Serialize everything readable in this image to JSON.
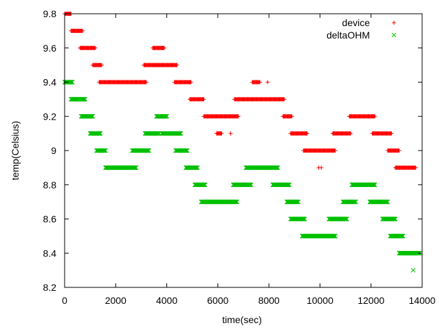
{
  "chart_data": {
    "type": "scatter",
    "title": "",
    "xlabel": "time(sec)",
    "ylabel": "temp(Celsius)",
    "xlim": [
      0,
      14000
    ],
    "ylim": [
      8.2,
      9.8
    ],
    "xticks": [
      0,
      2000,
      4000,
      6000,
      8000,
      10000,
      12000,
      14000
    ],
    "xtick_labels": [
      "0",
      "2000",
      "4000",
      "6000",
      "8000",
      "10000",
      "12000",
      "14000"
    ],
    "yticks": [
      8.2,
      8.4,
      8.6,
      8.8,
      9.0,
      9.2,
      9.4,
      9.6,
      9.8
    ],
    "ytick_labels": [
      "8.2",
      "8.4",
      "8.6",
      "8.8",
      "9",
      "9.2",
      "9.4",
      "9.6",
      "9.8"
    ],
    "grid": false,
    "legend_position": "top-right",
    "series": [
      {
        "name": "device",
        "marker": "plus",
        "color": "#ff0000",
        "segments": [
          {
            "x0": 0,
            "x1": 250,
            "y": 9.8
          },
          {
            "x0": 250,
            "x1": 700,
            "y": 9.7
          },
          {
            "x0": 600,
            "x1": 1200,
            "y": 9.6
          },
          {
            "x0": 1100,
            "x1": 1450,
            "y": 9.5
          },
          {
            "x0": 1350,
            "x1": 3200,
            "y": 9.4
          },
          {
            "x0": 3100,
            "x1": 3600,
            "y": 9.5
          },
          {
            "x0": 3450,
            "x1": 3900,
            "y": 9.6
          },
          {
            "x0": 3600,
            "x1": 4400,
            "y": 9.5
          },
          {
            "x0": 4300,
            "x1": 4950,
            "y": 9.4
          },
          {
            "x0": 4900,
            "x1": 5450,
            "y": 9.3
          },
          {
            "x0": 5450,
            "x1": 6800,
            "y": 9.2
          },
          {
            "x0": 5950,
            "x1": 6150,
            "y": 9.1
          },
          {
            "x0": 6650,
            "x1": 8600,
            "y": 9.3
          },
          {
            "x0": 7350,
            "x1": 7650,
            "y": 9.4
          },
          {
            "x0": 8550,
            "x1": 8900,
            "y": 9.2
          },
          {
            "x0": 8850,
            "x1": 9500,
            "y": 9.1
          },
          {
            "x0": 9350,
            "x1": 10600,
            "y": 9.0
          },
          {
            "x0": 10500,
            "x1": 11200,
            "y": 9.1
          },
          {
            "x0": 11150,
            "x1": 12150,
            "y": 9.2
          },
          {
            "x0": 12050,
            "x1": 12800,
            "y": 9.1
          },
          {
            "x0": 12650,
            "x1": 13100,
            "y": 9.0
          },
          {
            "x0": 12950,
            "x1": 13750,
            "y": 8.9
          }
        ],
        "points": [
          {
            "x": 6500,
            "y": 9.1
          },
          {
            "x": 7950,
            "y": 9.4
          },
          {
            "x": 9950,
            "y": 8.9
          },
          {
            "x": 10050,
            "y": 8.9
          }
        ]
      },
      {
        "name": "deltaOHM",
        "marker": "cross",
        "color": "#00c000",
        "segments": [
          {
            "x0": 0,
            "x1": 300,
            "y": 9.4
          },
          {
            "x0": 250,
            "x1": 800,
            "y": 9.3
          },
          {
            "x0": 650,
            "x1": 1100,
            "y": 9.2
          },
          {
            "x0": 1000,
            "x1": 1400,
            "y": 9.1
          },
          {
            "x0": 1250,
            "x1": 1600,
            "y": 9.0
          },
          {
            "x0": 1600,
            "x1": 2800,
            "y": 8.9
          },
          {
            "x0": 2650,
            "x1": 3300,
            "y": 9.0
          },
          {
            "x0": 3150,
            "x1": 3700,
            "y": 9.1
          },
          {
            "x0": 3600,
            "x1": 4000,
            "y": 9.2
          },
          {
            "x0": 3800,
            "x1": 4550,
            "y": 9.1
          },
          {
            "x0": 4350,
            "x1": 4800,
            "y": 9.0
          },
          {
            "x0": 4750,
            "x1": 5200,
            "y": 8.9
          },
          {
            "x0": 5100,
            "x1": 5500,
            "y": 8.8
          },
          {
            "x0": 5350,
            "x1": 6750,
            "y": 8.7
          },
          {
            "x0": 6600,
            "x1": 7300,
            "y": 8.8
          },
          {
            "x0": 7100,
            "x1": 8350,
            "y": 8.9
          },
          {
            "x0": 8150,
            "x1": 8800,
            "y": 8.8
          },
          {
            "x0": 8700,
            "x1": 9150,
            "y": 8.7
          },
          {
            "x0": 8850,
            "x1": 9400,
            "y": 8.6
          },
          {
            "x0": 9300,
            "x1": 10600,
            "y": 8.5
          },
          {
            "x0": 10350,
            "x1": 11050,
            "y": 8.6
          },
          {
            "x0": 10900,
            "x1": 11400,
            "y": 8.7
          },
          {
            "x0": 11250,
            "x1": 12150,
            "y": 8.8
          },
          {
            "x0": 11950,
            "x1": 12650,
            "y": 8.7
          },
          {
            "x0": 12450,
            "x1": 12950,
            "y": 8.6
          },
          {
            "x0": 12750,
            "x1": 13250,
            "y": 8.5
          },
          {
            "x0": 13100,
            "x1": 13900,
            "y": 8.4
          }
        ],
        "points": [
          {
            "x": 13650,
            "y": 8.3
          }
        ]
      }
    ]
  }
}
